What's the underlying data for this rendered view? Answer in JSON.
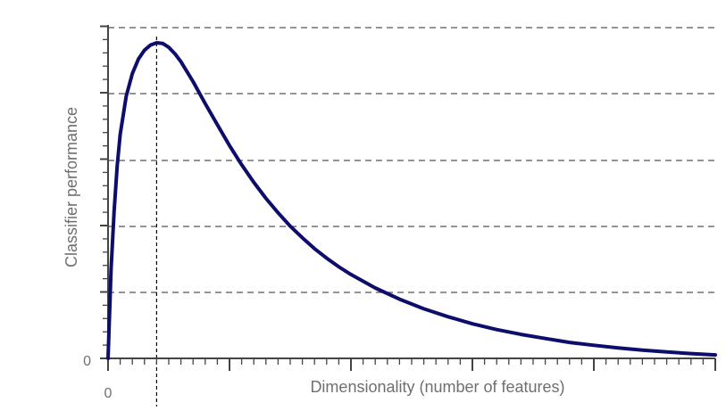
{
  "chart_data": {
    "type": "line",
    "title": "",
    "xlabel": "Dimensionality (number of features)",
    "ylabel": "Classifier performance",
    "x_tick_label": "0",
    "y_tick_label": "0",
    "xlim": [
      0,
      100
    ],
    "ylim": [
      0,
      100
    ],
    "grid": "horizontal-dashed",
    "optimum_x": 8,
    "series": [
      {
        "color": "#0d0d6b",
        "x": [
          0,
          0.5,
          1,
          1.5,
          2,
          3,
          4,
          5,
          6,
          7,
          8,
          9,
          10,
          11,
          12,
          14,
          16,
          18,
          20,
          22,
          24,
          26,
          28,
          30,
          32,
          34,
          36,
          38,
          40,
          44,
          48,
          52,
          56,
          60,
          64,
          68,
          72,
          76,
          80,
          84,
          88,
          92,
          96,
          100
        ],
        "values": [
          0,
          28,
          46,
          60,
          70,
          82,
          89,
          93.5,
          96.3,
          97.9,
          98.6,
          98.4,
          97.2,
          95.2,
          92.7,
          86.5,
          79.6,
          73,
          66.5,
          60.5,
          55,
          50,
          45.5,
          41.3,
          37.7,
          34.3,
          31.3,
          28.6,
          26.2,
          22,
          18.5,
          15.5,
          13,
          10.8,
          9,
          7.5,
          6.2,
          5,
          4.1,
          3.3,
          2.6,
          2,
          1.5,
          1.1
        ]
      }
    ]
  }
}
